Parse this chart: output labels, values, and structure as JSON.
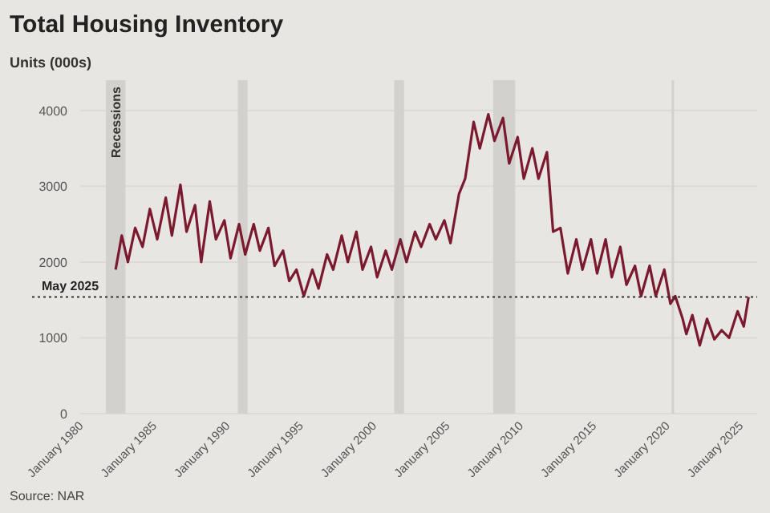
{
  "chart_data": {
    "type": "line",
    "title": "Total Housing Inventory",
    "ylabel": "Units (000s)",
    "x": [
      "1982-03",
      "1982-08",
      "1983-01",
      "1983-07",
      "1984-01",
      "1984-07",
      "1985-01",
      "1985-08",
      "1986-01",
      "1986-08",
      "1987-01",
      "1987-08",
      "1988-01",
      "1988-08",
      "1989-01",
      "1989-08",
      "1990-01",
      "1990-08",
      "1991-01",
      "1991-08",
      "1992-01",
      "1992-08",
      "1993-01",
      "1993-08",
      "1994-01",
      "1994-07",
      "1995-01",
      "1995-08",
      "1996-01",
      "1996-08",
      "1997-01",
      "1997-08",
      "1998-01",
      "1998-08",
      "1999-01",
      "1999-08",
      "2000-01",
      "2000-08",
      "2001-01",
      "2001-08",
      "2002-01",
      "2002-08",
      "2003-01",
      "2003-08",
      "2004-01",
      "2004-08",
      "2005-01",
      "2005-08",
      "2006-01",
      "2006-08",
      "2007-01",
      "2007-08",
      "2008-01",
      "2008-08",
      "2009-01",
      "2009-08",
      "2010-01",
      "2010-08",
      "2011-01",
      "2011-08",
      "2012-01",
      "2012-07",
      "2013-01",
      "2013-08",
      "2014-01",
      "2014-08",
      "2015-01",
      "2015-08",
      "2016-01",
      "2016-08",
      "2017-01",
      "2017-08",
      "2018-01",
      "2018-08",
      "2019-01",
      "2019-08",
      "2020-01",
      "2020-05",
      "2020-11",
      "2021-02",
      "2021-07",
      "2022-01",
      "2022-07",
      "2023-01",
      "2023-07",
      "2024-01",
      "2024-08",
      "2025-01",
      "2025-05"
    ],
    "series": [
      {
        "color": "#7b1a2e",
        "values": [
          1900,
          2350,
          2000,
          2450,
          2200,
          2700,
          2300,
          2850,
          2350,
          3020,
          2400,
          2750,
          2000,
          2800,
          2300,
          2550,
          2050,
          2500,
          2100,
          2500,
          2150,
          2450,
          1950,
          2150,
          1750,
          1900,
          1550,
          1900,
          1650,
          2100,
          1900,
          2350,
          2000,
          2400,
          1900,
          2200,
          1800,
          2150,
          1900,
          2300,
          2000,
          2400,
          2200,
          2500,
          2300,
          2550,
          2250,
          2900,
          3100,
          3850,
          3500,
          3950,
          3600,
          3900,
          3300,
          3650,
          3100,
          3500,
          3100,
          3450,
          2400,
          2450,
          1850,
          2300,
          1900,
          2300,
          1850,
          2300,
          1800,
          2200,
          1700,
          1950,
          1550,
          1950,
          1550,
          1900,
          1450,
          1550,
          1250,
          1050,
          1300,
          900,
          1250,
          980,
          1100,
          1000,
          1350,
          1150,
          1540
        ]
      }
    ],
    "xlim": [
      "1979-10",
      "2025-12"
    ],
    "xticks": [
      {
        "value": "1980-01",
        "label": "January 1980"
      },
      {
        "value": "1985-01",
        "label": "January 1985"
      },
      {
        "value": "1990-01",
        "label": "January 1990"
      },
      {
        "value": "1995-01",
        "label": "January 1995"
      },
      {
        "value": "2000-01",
        "label": "January 2000"
      },
      {
        "value": "2005-01",
        "label": "January 2005"
      },
      {
        "value": "2010-01",
        "label": "January 2010"
      },
      {
        "value": "2015-01",
        "label": "January 2015"
      },
      {
        "value": "2020-01",
        "label": "January 2020"
      },
      {
        "value": "2025-01",
        "label": "January 2025"
      }
    ],
    "ylim": [
      0,
      4400
    ],
    "yticks": [
      0,
      1000,
      2000,
      3000,
      4000
    ],
    "grid": "y",
    "ref_lines": [
      {
        "axis": "y",
        "value": 1540,
        "label": "May 2025",
        "color": "#333333",
        "line_style": "dotted"
      }
    ],
    "bands": [
      {
        "axis": "x",
        "from": "1981-07",
        "to": "1982-11",
        "label": "Recessions",
        "color": "#d3d1ce"
      },
      {
        "axis": "x",
        "from": "1990-07",
        "to": "1991-03",
        "color": "#d3d1ce"
      },
      {
        "axis": "x",
        "from": "2001-03",
        "to": "2001-11",
        "color": "#d3d1ce"
      },
      {
        "axis": "x",
        "from": "2007-12",
        "to": "2009-06",
        "color": "#d3d1ce"
      },
      {
        "axis": "x",
        "from": "2020-02",
        "to": "2020-04",
        "color": "#d3d1ce"
      }
    ],
    "annotations": [
      "Source: NAR"
    ]
  }
}
